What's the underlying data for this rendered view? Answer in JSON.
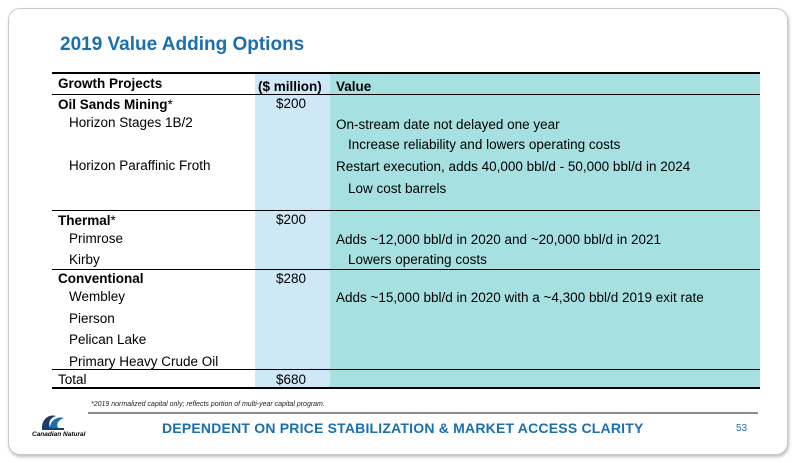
{
  "title": "2019 Value Adding Options",
  "table": {
    "headers": {
      "project": "Growth Projects",
      "amount": "($ million)",
      "value": "Value"
    },
    "oil_sands": {
      "heading": "Oil Sands Mining",
      "asterisk": "*",
      "amount": "$200",
      "items": [
        "Horizon Stages 1B/2",
        "Horizon Paraffinic Froth"
      ],
      "values": [
        "On-stream date not delayed one year",
        "Increase reliability and lowers operating costs",
        "Restart execution, adds 40,000 bbl/d - 50,000 bbl/d in 2024",
        "Low cost barrels"
      ]
    },
    "thermal": {
      "heading": "Thermal",
      "asterisk": "*",
      "amount": "$200",
      "items": [
        "Primrose",
        "Kirby"
      ],
      "values": [
        "Adds ~12,000 bbl/d in 2020 and ~20,000 bbl/d in 2021",
        "Lowers operating costs"
      ]
    },
    "conventional": {
      "heading": "Conventional",
      "amount": "$280",
      "items": [
        "Wembley",
        "Pierson",
        "Pelican Lake",
        "Primary Heavy Crude Oil"
      ],
      "values": [
        "Adds ~15,000 bbl/d in 2020 with a ~4,300 bbl/d 2019 exit rate"
      ]
    },
    "total": {
      "label": "Total",
      "amount": "$680"
    }
  },
  "footnote": "*2019 normalized capital only; reflects portion of multi-year capital program.",
  "banner": "DEPENDENT ON PRICE STABILIZATION & MARKET ACCESS CLARITY",
  "page_number": "53",
  "logo_text": "Canadian Natural",
  "colors": {
    "title": "#1a6fb0",
    "amount_col": "#cfe8f8",
    "value_col": "#a6e0e1"
  }
}
